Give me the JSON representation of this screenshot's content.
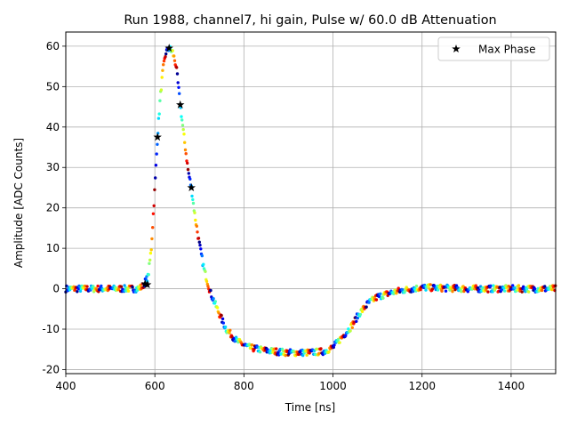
{
  "chart_data": {
    "type": "scatter",
    "title": "Run 1988, channel7, hi gain, Pulse w/ 60.0 dB Attenuation",
    "xlabel": "Time [ns]",
    "ylabel": "Amplitude [ADC Counts]",
    "xlim": [
      400,
      1500
    ],
    "ylim": [
      -21,
      63.5
    ],
    "xticks": [
      400,
      600,
      800,
      1000,
      1200,
      1400
    ],
    "yticks": [
      -20,
      -10,
      0,
      10,
      20,
      30,
      40,
      50,
      60
    ],
    "grid": true,
    "legend": {
      "placement": "top-right",
      "entries": [
        "Max Phase"
      ]
    },
    "colormap": "jet",
    "series": [
      {
        "name": "Max Phase",
        "marker": "star",
        "color": "#000000",
        "points": [
          [
            578,
            1.2
          ],
          [
            583,
            1.0
          ],
          [
            606,
            37.5
          ],
          [
            632,
            59.5
          ],
          [
            657,
            45.5
          ],
          [
            682,
            25.0
          ]
        ]
      }
    ],
    "waveform": {
      "description": "pulse samples colored by phase",
      "points": [
        [
          400,
          0.0
        ],
        [
          560,
          0.0
        ],
        [
          572,
          0.5
        ],
        [
          585,
          3.0
        ],
        [
          592,
          10.0
        ],
        [
          600,
          25.0
        ],
        [
          606,
          37.5
        ],
        [
          612,
          47.0
        ],
        [
          618,
          54.0
        ],
        [
          625,
          58.5
        ],
        [
          632,
          59.5
        ],
        [
          640,
          58.5
        ],
        [
          648,
          55.0
        ],
        [
          657,
          45.5
        ],
        [
          665,
          38.0
        ],
        [
          675,
          29.0
        ],
        [
          682,
          25.0
        ],
        [
          690,
          18.0
        ],
        [
          700,
          11.0
        ],
        [
          710,
          5.0
        ],
        [
          725,
          -1.0
        ],
        [
          740,
          -5.0
        ],
        [
          760,
          -10.0
        ],
        [
          785,
          -13.0
        ],
        [
          810,
          -14.5
        ],
        [
          850,
          -15.3
        ],
        [
          900,
          -15.8
        ],
        [
          950,
          -15.8
        ],
        [
          980,
          -15.5
        ],
        [
          1000,
          -14.5
        ],
        [
          1020,
          -12.0
        ],
        [
          1040,
          -9.5
        ],
        [
          1060,
          -6.0
        ],
        [
          1080,
          -3.5
        ],
        [
          1100,
          -2.0
        ],
        [
          1130,
          -1.0
        ],
        [
          1160,
          -0.3
        ],
        [
          1200,
          0.3
        ],
        [
          1300,
          0.0
        ],
        [
          1400,
          0.0
        ],
        [
          1500,
          0.0
        ]
      ]
    }
  },
  "colors": {
    "grid": "#b0b0b0",
    "axes": "#000000",
    "star": "#000000"
  }
}
